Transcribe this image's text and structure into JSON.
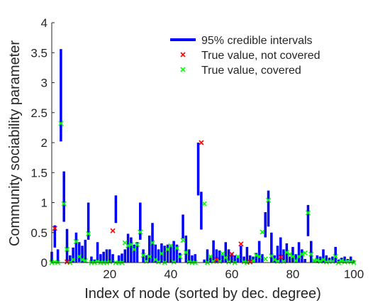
{
  "chart_data": {
    "type": "scatter",
    "title": "",
    "xlabel": "Index of node (sorted by dec. degree)",
    "ylabel": "Community sociability parameter",
    "xlim": [
      1,
      100
    ],
    "ylim": [
      0,
      4
    ],
    "xticks": [
      20,
      40,
      60,
      80,
      100
    ],
    "yticks": [
      0,
      0.5,
      1,
      1.5,
      2,
      2.5,
      3,
      3.5,
      4
    ],
    "grid": false,
    "legend_position": "top-right",
    "colors": {
      "interval": "#0000ff",
      "not_covered": "#ff0000",
      "covered": "#00ff00",
      "axis": "#262626"
    },
    "series": [
      {
        "name": "95% credible intervals",
        "marker": "bar",
        "intervals": [
          [
            0,
            0.18
          ],
          [
            0.25,
            0.62
          ],
          [
            0,
            0.22
          ],
          [
            2.02,
            3.56
          ],
          [
            0.68,
            1.52
          ],
          [
            0,
            0.56
          ],
          [
            0,
            0.12
          ],
          [
            0,
            0.25
          ],
          [
            0,
            0.5
          ],
          [
            0.01,
            0.34
          ],
          [
            0,
            0.28
          ],
          [
            0,
            0.38
          ],
          [
            0.38,
            1.0
          ],
          [
            0,
            0.1
          ],
          [
            0,
            0.05
          ],
          [
            0,
            0.34
          ],
          [
            0,
            0.14
          ],
          [
            0,
            0.18
          ],
          [
            0,
            0.22
          ],
          [
            0,
            0.22
          ],
          [
            0,
            0.14
          ],
          [
            0.66,
            1.12
          ],
          [
            0,
            0.12
          ],
          [
            0,
            0.15
          ],
          [
            0,
            0.22
          ],
          [
            0,
            0.48
          ],
          [
            0,
            0.42
          ],
          [
            0,
            0.3
          ],
          [
            0,
            0.34
          ],
          [
            0.38,
            1.0
          ],
          [
            0,
            0.22
          ],
          [
            0,
            0.12
          ],
          [
            0,
            0.45
          ],
          [
            0,
            0.66
          ],
          [
            0,
            0.3
          ],
          [
            0,
            0.22
          ],
          [
            0,
            0.32
          ],
          [
            0,
            0.28
          ],
          [
            0,
            0.3
          ],
          [
            0,
            0.3
          ],
          [
            0,
            0.36
          ],
          [
            0,
            0.3
          ],
          [
            0,
            0.16
          ],
          [
            0.4,
            0.8
          ],
          [
            0,
            0.45
          ],
          [
            0,
            0.22
          ],
          [
            0,
            0.12
          ],
          [
            0,
            0.14
          ],
          [
            1.12,
            2.0
          ],
          [
            0.55,
            1.18
          ],
          [
            0,
            0.05
          ],
          [
            0,
            0.22
          ],
          [
            0,
            0.1
          ],
          [
            0,
            0.37
          ],
          [
            0,
            0.22
          ],
          [
            0,
            0.2
          ],
          [
            0,
            0.12
          ],
          [
            0,
            0.34
          ],
          [
            0,
            0.22
          ],
          [
            0,
            0.16
          ],
          [
            0,
            0.12
          ],
          [
            0,
            0.1
          ],
          [
            0,
            0.28
          ],
          [
            0,
            0.1
          ],
          [
            0,
            0.26
          ],
          [
            0,
            0.12
          ],
          [
            0,
            0.1
          ],
          [
            0,
            0.16
          ],
          [
            0,
            0.36
          ],
          [
            0,
            0.14
          ],
          [
            0.42,
            0.84
          ],
          [
            0.6,
            1.2
          ],
          [
            0,
            0.5
          ],
          [
            0,
            0.12
          ],
          [
            0,
            0.28
          ],
          [
            0,
            0.42
          ],
          [
            0,
            0.22
          ],
          [
            0,
            0.32
          ],
          [
            0,
            0.1
          ],
          [
            0,
            0.26
          ],
          [
            0,
            0.14
          ],
          [
            0,
            0.34
          ],
          [
            0,
            0.22
          ],
          [
            0,
            0.06
          ],
          [
            0.44,
            0.96
          ],
          [
            0,
            0.36
          ],
          [
            0,
            0.05
          ],
          [
            0,
            0.12
          ],
          [
            0,
            0.1
          ],
          [
            0,
            0.22
          ],
          [
            0,
            0.12
          ],
          [
            0,
            0.08
          ],
          [
            0,
            0.1
          ],
          [
            0,
            0.26
          ],
          [
            0,
            0.05
          ],
          [
            0,
            0.08
          ],
          [
            0,
            0.1
          ],
          [
            0,
            0.06
          ],
          [
            0,
            0.1
          ],
          [
            0,
            0.03
          ]
        ]
      },
      {
        "name": "True value, not covered",
        "marker": "x",
        "points": [
          [
            2,
            0.57
          ],
          [
            6,
            0.01
          ],
          [
            21,
            0.53
          ],
          [
            50,
            2.0
          ],
          [
            55,
            0.05
          ],
          [
            60,
            0.14
          ],
          [
            63,
            0.31
          ],
          [
            66,
            0.01
          ],
          [
            76,
            0.09
          ]
        ]
      },
      {
        "name": "True value, covered",
        "marker": "x",
        "points": [
          [
            1,
            0
          ],
          [
            2,
            0.01
          ],
          [
            3,
            0
          ],
          [
            4,
            2.32
          ],
          [
            5,
            0.98
          ],
          [
            6,
            0.22
          ],
          [
            7,
            0
          ],
          [
            8,
            0.05
          ],
          [
            9,
            0.35
          ],
          [
            10,
            0.1
          ],
          [
            11,
            0.05
          ],
          [
            12,
            0.03
          ],
          [
            13,
            0.48
          ],
          [
            14,
            0
          ],
          [
            15,
            0
          ],
          [
            16,
            0.02
          ],
          [
            17,
            0
          ],
          [
            18,
            0
          ],
          [
            19,
            0
          ],
          [
            20,
            0.01
          ],
          [
            22,
            0
          ],
          [
            23,
            0
          ],
          [
            24,
            0
          ],
          [
            25,
            0.33
          ],
          [
            26,
            0.28
          ],
          [
            27,
            0.3
          ],
          [
            28,
            0.22
          ],
          [
            29,
            0.3
          ],
          [
            30,
            0.51
          ],
          [
            31,
            0.12
          ],
          [
            32,
            0.02
          ],
          [
            33,
            0.1
          ],
          [
            34,
            0.33
          ],
          [
            35,
            0.05
          ],
          [
            36,
            0.01
          ],
          [
            37,
            0.15
          ],
          [
            38,
            0
          ],
          [
            39,
            0.22
          ],
          [
            40,
            0.28
          ],
          [
            41,
            0.01
          ],
          [
            42,
            0.24
          ],
          [
            43,
            0.1
          ],
          [
            44,
            0.37
          ],
          [
            45,
            0.17
          ],
          [
            46,
            0.01
          ],
          [
            47,
            0
          ],
          [
            48,
            0
          ],
          [
            51,
            0.98
          ],
          [
            52,
            0
          ],
          [
            53,
            0.1
          ],
          [
            54,
            0.02
          ],
          [
            56,
            0.02
          ],
          [
            57,
            0.15
          ],
          [
            58,
            0.08
          ],
          [
            59,
            0.01
          ],
          [
            61,
            0
          ],
          [
            62,
            0.1
          ],
          [
            64,
            0.01
          ],
          [
            65,
            0
          ],
          [
            67,
            0.03
          ],
          [
            68,
            0.12
          ],
          [
            69,
            0.1
          ],
          [
            70,
            0.51
          ],
          [
            71,
            0.06
          ],
          [
            72,
            1.04
          ],
          [
            73,
            0.11
          ],
          [
            74,
            0.05
          ],
          [
            75,
            0.02
          ],
          [
            77,
            0.02
          ],
          [
            78,
            0.17
          ],
          [
            79,
            0.14
          ],
          [
            80,
            0.1
          ],
          [
            81,
            0.03
          ],
          [
            82,
            0.1
          ],
          [
            83,
            0.14
          ],
          [
            84,
            0.16
          ],
          [
            85,
            0.83
          ],
          [
            86,
            0.14
          ],
          [
            87,
            0.03
          ],
          [
            88,
            0.04
          ],
          [
            89,
            0.02
          ],
          [
            90,
            0.05
          ],
          [
            91,
            0.01
          ],
          [
            92,
            0.02
          ],
          [
            93,
            0.02
          ],
          [
            94,
            0.1
          ],
          [
            95,
            0
          ],
          [
            96,
            0.03
          ],
          [
            97,
            0.01
          ],
          [
            98,
            0.02
          ],
          [
            99,
            0.01
          ],
          [
            100,
            0
          ]
        ]
      }
    ]
  }
}
